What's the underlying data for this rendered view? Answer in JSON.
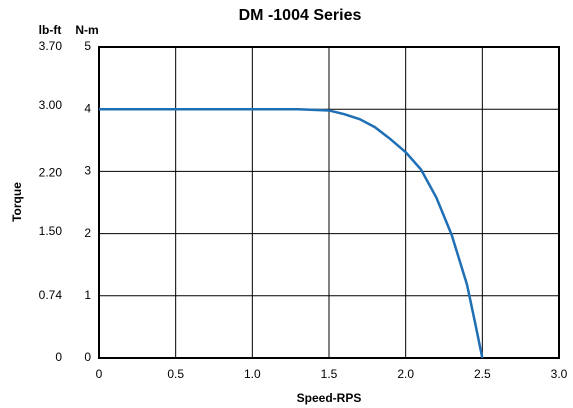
{
  "chart_data": {
    "type": "line",
    "title": "DM -1004 Series",
    "xlabel": "Speed-RPS",
    "ylabel": "Torque",
    "ylabel_units": "N-m",
    "y2label": "lb-ft",
    "x": [
      0,
      0.5,
      1.0,
      1.3,
      1.4,
      1.5,
      1.6,
      1.7,
      1.8,
      1.9,
      2.0,
      2.1,
      2.2,
      2.3,
      2.4,
      2.45,
      2.5
    ],
    "values": [
      4,
      4,
      4,
      4,
      3.99,
      3.98,
      3.92,
      3.84,
      3.71,
      3.52,
      3.31,
      3.03,
      2.58,
      1.98,
      1.18,
      0.6,
      0
    ],
    "color": "#1f6fb5",
    "xlim": [
      0,
      3
    ],
    "xticks": [
      0,
      0.5,
      {
        "value": 1,
        "label": "1.0"
      },
      1.5,
      {
        "value": 2,
        "label": "2.0"
      },
      2.5,
      {
        "value": 3,
        "label": "3.0"
      }
    ],
    "ylim": [
      0,
      5
    ],
    "yticks": [
      0,
      1,
      2,
      3,
      4,
      5
    ],
    "y2lim": [
      0,
      3.7
    ],
    "y2ticks": [
      0,
      0.74,
      {
        "value": 1.5,
        "label": "1.50"
      },
      {
        "value": 2.2,
        "label": "2.20"
      },
      {
        "value": 3,
        "label": "3.00"
      },
      {
        "value": 3.7,
        "label": "3.70"
      }
    ],
    "grid": true
  }
}
